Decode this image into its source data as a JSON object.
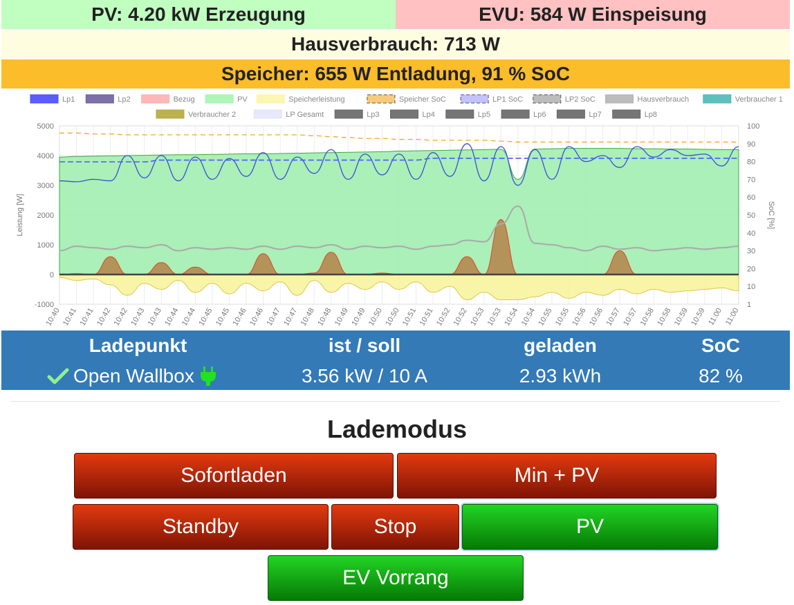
{
  "status": {
    "pv": "PV: 4.20 kW Erzeugung",
    "evu": "EVU: 584 W Einspeisung",
    "house": "Hausverbrauch: 713 W",
    "storage": "Speicher: 655 W Entladung, 91 % SoC"
  },
  "colors": {
    "pv_bg": "#c1ffc1",
    "evu_bg": "#ffc1c1",
    "house_bg": "#fffde0",
    "storage_bg": "#fbbd2a",
    "table_bg": "#337ab7",
    "button_red": "#c42a0a",
    "button_green": "#11a511"
  },
  "chart_data": {
    "type": "line",
    "ylabel": "Leistung [W]",
    "y2label": "SoC [%]",
    "ylim": [
      -1000,
      5000
    ],
    "y2lim": [
      1,
      100
    ],
    "yticks": [
      "5000",
      "4000",
      "3000",
      "2000",
      "1000",
      "0",
      "-1000"
    ],
    "y2ticks": [
      "100",
      "90",
      "80",
      "70",
      "60",
      "50",
      "40",
      "30",
      "20",
      "10",
      "1"
    ],
    "x": [
      "10:40",
      "10:41",
      "10:41",
      "10:42",
      "10:42",
      "10:43",
      "10:43",
      "10:44",
      "10:44",
      "10:45",
      "10:45",
      "10:46",
      "10:46",
      "10:47",
      "10:47",
      "10:48",
      "10:48",
      "10:49",
      "10:49",
      "10:50",
      "10:50",
      "10:51",
      "10:51",
      "10:52",
      "10:52",
      "10:53",
      "10:53",
      "10:54",
      "10:54",
      "10:55",
      "10:55",
      "10:56",
      "10:56",
      "10:57",
      "10:57",
      "10:58",
      "10:58",
      "10:59",
      "10:59",
      "11:00",
      "11:00"
    ],
    "legend": {
      "row1": [
        {
          "label": "Lp1",
          "color": "#4b4bff",
          "style": "solid"
        },
        {
          "label": "Lp2",
          "color": "#6f5f9e",
          "style": "solid"
        },
        {
          "label": "Bezug",
          "color": "#ffb0b0",
          "style": "solid"
        },
        {
          "label": "PV",
          "color": "#a6f5b0",
          "style": "solid"
        },
        {
          "label": "Speicherleistung",
          "color": "#fbf6a8",
          "style": "solid"
        },
        {
          "label": "Speicher SoC",
          "color": "#f5a623",
          "style": "dashed"
        },
        {
          "label": "LP1 SoC",
          "color": "#9a9aff",
          "style": "dashed"
        },
        {
          "label": "LP2 SoC",
          "color": "#8f8f8f",
          "style": "dashed"
        },
        {
          "label": "Hausverbrauch",
          "color": "#b5b5b5",
          "style": "solid"
        },
        {
          "label": "Verbraucher 1",
          "color": "#4cb8b8",
          "style": "solid"
        }
      ],
      "row2": [
        {
          "label": "Verbraucher 2",
          "color": "#b5a83c",
          "style": "solid"
        },
        {
          "label": "LP Gesamt",
          "color": "#e5e5fa",
          "style": "solid"
        },
        {
          "label": "Lp3",
          "color": "#666666",
          "style": "solid"
        },
        {
          "label": "Lp4",
          "color": "#666666",
          "style": "solid"
        },
        {
          "label": "Lp5",
          "color": "#666666",
          "style": "solid"
        },
        {
          "label": "Lp6",
          "color": "#666666",
          "style": "solid"
        },
        {
          "label": "Lp7",
          "color": "#666666",
          "style": "solid"
        },
        {
          "label": "Lp8",
          "color": "#666666",
          "style": "solid"
        }
      ]
    },
    "series": {
      "pv": [
        3950,
        3970,
        3980,
        3990,
        4000,
        4010,
        4020,
        4030,
        4030,
        4040,
        4050,
        4060,
        4060,
        4070,
        4080,
        4090,
        4100,
        4110,
        4120,
        4130,
        4150,
        4160,
        4170,
        4180,
        4190,
        4200,
        4210,
        3200,
        4220,
        4230,
        4240,
        4240,
        4240,
        4240,
        4230,
        4230,
        4220,
        4220,
        4210,
        4200,
        4200
      ],
      "lp1": [
        3150,
        3120,
        3200,
        3150,
        4000,
        3250,
        4000,
        3150,
        3950,
        3200,
        3900,
        3300,
        4100,
        3200,
        3950,
        3400,
        4200,
        3200,
        4050,
        3350,
        4050,
        3200,
        4100,
        3300,
        4400,
        3150,
        4300,
        3000,
        4200,
        3200,
        4300,
        3800,
        4000,
        3600,
        4300,
        3950,
        4200,
        4000,
        4050,
        3650,
        4300
      ],
      "house": [
        800,
        950,
        900,
        850,
        950,
        900,
        1000,
        800,
        900,
        850,
        900,
        850,
        950,
        850,
        950,
        900,
        1000,
        850,
        950,
        900,
        950,
        850,
        950,
        1000,
        1150,
        1100,
        1700,
        2300,
        1050,
        1000,
        900,
        800,
        950,
        850,
        900,
        800,
        850,
        900,
        850,
        900,
        950
      ],
      "storage": [
        -100,
        -200,
        -150,
        -350,
        -700,
        -300,
        -500,
        -200,
        -600,
        -300,
        -650,
        -300,
        -550,
        -250,
        -700,
        -200,
        -600,
        -300,
        -500,
        -250,
        -500,
        -250,
        -600,
        -400,
        -850,
        -600,
        -850,
        -850,
        -750,
        -600,
        -800,
        -600,
        -700,
        -500,
        -650,
        -500,
        -600,
        -550,
        -500,
        -450,
        -550
      ],
      "bezug": [
        0,
        30,
        0,
        600,
        0,
        0,
        400,
        0,
        250,
        0,
        0,
        0,
        700,
        0,
        0,
        50,
        750,
        0,
        0,
        50,
        0,
        0,
        0,
        0,
        600,
        0,
        1850,
        0,
        0,
        0,
        0,
        0,
        0,
        800,
        0,
        0,
        0,
        0,
        0,
        0,
        0
      ],
      "storage_soc": [
        96,
        96,
        95.5,
        95.5,
        95,
        95,
        95,
        95,
        95,
        95,
        95,
        95,
        95,
        95,
        95,
        94.5,
        94,
        93.5,
        93,
        93,
        92.5,
        92.5,
        92,
        92,
        92,
        92,
        91.5,
        91,
        91,
        91,
        91,
        91,
        91,
        91,
        91,
        91,
        91,
        91,
        91,
        91,
        91
      ],
      "lp1_soc": [
        80,
        80,
        80,
        80,
        80,
        80,
        81,
        81,
        81,
        81,
        81,
        81,
        81,
        81,
        81,
        81,
        81,
        81,
        81,
        81,
        81,
        81,
        82,
        82,
        82,
        82,
        82,
        82,
        82,
        82,
        82,
        82,
        82,
        82,
        82,
        82,
        82,
        82,
        82,
        82,
        82
      ]
    }
  },
  "ladepunkt": {
    "headers": {
      "name": "Ladepunkt",
      "actual": "ist / soll",
      "charged": "geladen",
      "soc": "SoC"
    },
    "row": {
      "name": "Open Wallbox",
      "actual": "3.56 kW / 10 A",
      "charged": "2.93 kWh",
      "soc": "82 %"
    }
  },
  "lademodus": {
    "title": "Lademodus",
    "buttons": {
      "sofortladen": "Sofortladen",
      "min_pv": "Min + PV",
      "standby": "Standby",
      "stop": "Stop",
      "pv": "PV",
      "ev_vorrang": "EV Vorrang"
    },
    "active": "PV"
  }
}
